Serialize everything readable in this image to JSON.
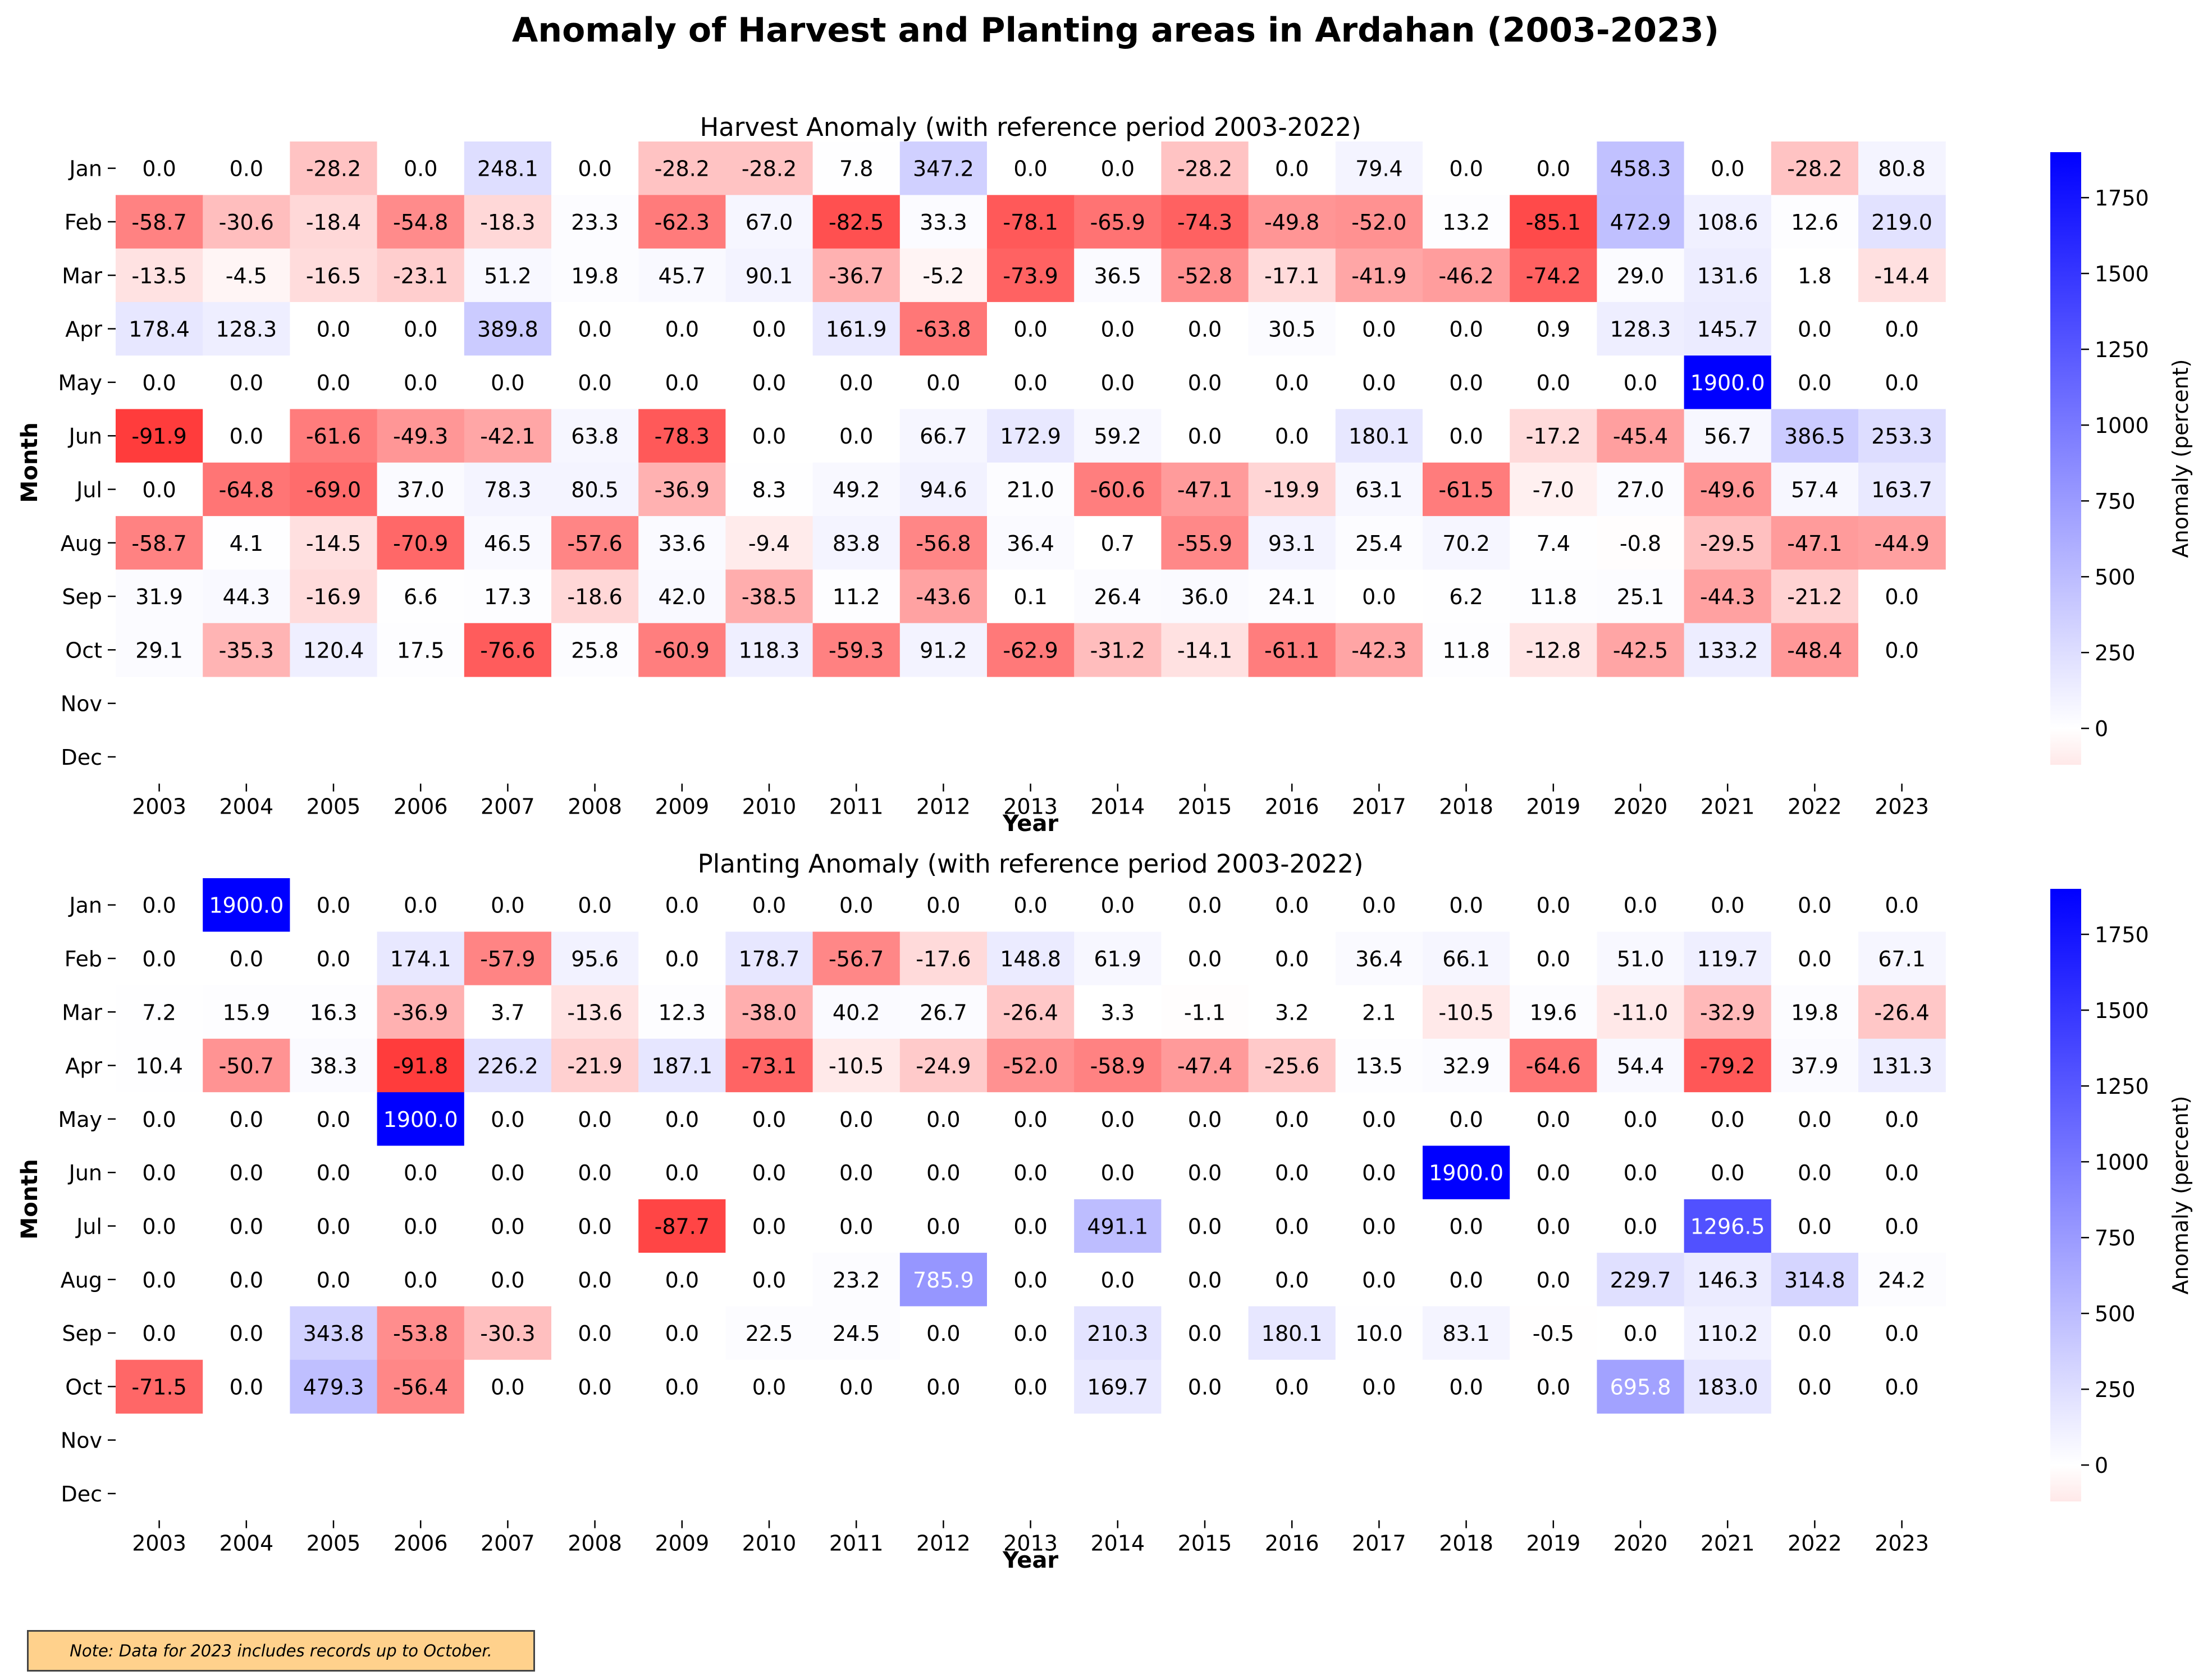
{
  "title": "Anomaly of Harvest and Planting areas in Ardahan (2003-2023)",
  "note": "Note: Data for 2023 includes records up to October.",
  "colors": {
    "negative": "#FF0000",
    "zero": "#FFFFFF",
    "positive": "#0000FF"
  },
  "chart_data": [
    {
      "type": "heatmap",
      "title": "Harvest Anomaly (with reference period 2003-2022)",
      "xlabel": "Year",
      "ylabel": "Month",
      "colorbar_label": "Anomaly (percent)",
      "colorbar_ticks": [
        "0",
        "250",
        "500",
        "750",
        "1000",
        "1250",
        "1500",
        "1750"
      ],
      "colorbar_range": [
        -120,
        1900
      ],
      "years": [
        "2003",
        "2004",
        "2005",
        "2006",
        "2007",
        "2008",
        "2009",
        "2010",
        "2011",
        "2012",
        "2013",
        "2014",
        "2015",
        "2016",
        "2017",
        "2018",
        "2019",
        "2020",
        "2021",
        "2022",
        "2023"
      ],
      "months": [
        "Jan",
        "Feb",
        "Mar",
        "Apr",
        "May",
        "Jun",
        "Jul",
        "Aug",
        "Sep",
        "Oct",
        "Nov",
        "Dec"
      ],
      "values": [
        [
          0.0,
          0.0,
          -28.2,
          0.0,
          248.1,
          0.0,
          -28.2,
          -28.2,
          7.8,
          347.2,
          0.0,
          0.0,
          -28.2,
          0.0,
          79.4,
          0.0,
          0.0,
          458.3,
          0.0,
          -28.2,
          80.8
        ],
        [
          -58.7,
          -30.6,
          -18.4,
          -54.8,
          -18.3,
          23.3,
          -62.3,
          67.0,
          -82.5,
          33.3,
          -78.1,
          -65.9,
          -74.3,
          -49.8,
          -52.0,
          13.2,
          -85.1,
          472.9,
          108.6,
          12.6,
          219.0
        ],
        [
          -13.5,
          -4.5,
          -16.5,
          -23.1,
          51.2,
          19.8,
          45.7,
          90.1,
          -36.7,
          -5.2,
          -73.9,
          36.5,
          -52.8,
          -17.1,
          -41.9,
          -46.2,
          -74.2,
          29.0,
          131.6,
          1.8,
          -14.4
        ],
        [
          178.4,
          128.3,
          0.0,
          0.0,
          389.8,
          0.0,
          0.0,
          0.0,
          161.9,
          -63.8,
          0.0,
          0.0,
          0.0,
          30.5,
          0.0,
          0.0,
          0.9,
          128.3,
          145.7,
          0.0,
          0.0
        ],
        [
          0.0,
          0.0,
          0.0,
          0.0,
          0.0,
          0.0,
          0.0,
          0.0,
          0.0,
          0.0,
          0.0,
          0.0,
          0.0,
          0.0,
          0.0,
          0.0,
          0.0,
          0.0,
          1900.0,
          0.0,
          0.0
        ],
        [
          -91.9,
          0.0,
          -61.6,
          -49.3,
          -42.1,
          63.8,
          -78.3,
          0.0,
          0.0,
          66.7,
          172.9,
          59.2,
          0.0,
          0.0,
          180.1,
          0.0,
          -17.2,
          -45.4,
          56.7,
          386.5,
          253.3
        ],
        [
          0.0,
          -64.8,
          -69.0,
          37.0,
          78.3,
          80.5,
          -36.9,
          8.3,
          49.2,
          94.6,
          21.0,
          -60.6,
          -47.1,
          -19.9,
          63.1,
          -61.5,
          -7.0,
          27.0,
          -49.6,
          57.4,
          163.7
        ],
        [
          -58.7,
          4.1,
          -14.5,
          -70.9,
          46.5,
          -57.6,
          33.6,
          -9.4,
          83.8,
          -56.8,
          36.4,
          0.7,
          -55.9,
          93.1,
          25.4,
          70.2,
          7.4,
          -0.8,
          -29.5,
          -47.1,
          -44.9
        ],
        [
          31.9,
          44.3,
          -16.9,
          6.6,
          17.3,
          -18.6,
          42.0,
          -38.5,
          11.2,
          -43.6,
          0.1,
          26.4,
          36.0,
          24.1,
          0.0,
          6.2,
          11.8,
          25.1,
          -44.3,
          -21.2,
          0.0
        ],
        [
          29.1,
          -35.3,
          120.4,
          17.5,
          -76.6,
          25.8,
          -60.9,
          118.3,
          -59.3,
          91.2,
          -62.9,
          -31.2,
          -14.1,
          -61.1,
          -42.3,
          11.8,
          -12.8,
          -42.5,
          133.2,
          -48.4,
          0.0
        ],
        [
          null,
          null,
          null,
          null,
          null,
          null,
          null,
          null,
          null,
          null,
          null,
          null,
          null,
          null,
          null,
          null,
          null,
          null,
          null,
          null,
          null
        ],
        [
          null,
          null,
          null,
          null,
          null,
          null,
          null,
          null,
          null,
          null,
          null,
          null,
          null,
          null,
          null,
          null,
          null,
          null,
          null,
          null,
          null
        ]
      ]
    },
    {
      "type": "heatmap",
      "title": "Planting Anomaly (with reference period 2003-2022)",
      "xlabel": "Year",
      "ylabel": "Month",
      "colorbar_label": "Anomaly (percent)",
      "colorbar_ticks": [
        "0",
        "250",
        "500",
        "750",
        "1000",
        "1250",
        "1500",
        "1750"
      ],
      "colorbar_range": [
        -120,
        1900
      ],
      "years": [
        "2003",
        "2004",
        "2005",
        "2006",
        "2007",
        "2008",
        "2009",
        "2010",
        "2011",
        "2012",
        "2013",
        "2014",
        "2015",
        "2016",
        "2017",
        "2018",
        "2019",
        "2020",
        "2021",
        "2022",
        "2023"
      ],
      "months": [
        "Jan",
        "Feb",
        "Mar",
        "Apr",
        "May",
        "Jun",
        "Jul",
        "Aug",
        "Sep",
        "Oct",
        "Nov",
        "Dec"
      ],
      "values": [
        [
          0.0,
          1900.0,
          0.0,
          0.0,
          0.0,
          0.0,
          0.0,
          0.0,
          0.0,
          0.0,
          0.0,
          0.0,
          0.0,
          0.0,
          0.0,
          0.0,
          0.0,
          0.0,
          0.0,
          0.0,
          0.0
        ],
        [
          0.0,
          0.0,
          0.0,
          174.1,
          -57.9,
          95.6,
          0.0,
          178.7,
          -56.7,
          -17.6,
          148.8,
          61.9,
          0.0,
          0.0,
          36.4,
          66.1,
          0.0,
          51.0,
          119.7,
          0.0,
          67.1
        ],
        [
          7.2,
          15.9,
          16.3,
          -36.9,
          3.7,
          -13.6,
          12.3,
          -38.0,
          40.2,
          26.7,
          -26.4,
          3.3,
          -1.1,
          3.2,
          2.1,
          -10.5,
          19.6,
          -11.0,
          -32.9,
          19.8,
          -26.4
        ],
        [
          10.4,
          -50.7,
          38.3,
          -91.8,
          226.2,
          -21.9,
          187.1,
          -73.1,
          -10.5,
          -24.9,
          -52.0,
          -58.9,
          -47.4,
          -25.6,
          13.5,
          32.9,
          -64.6,
          54.4,
          -79.2,
          37.9,
          131.3
        ],
        [
          0.0,
          0.0,
          0.0,
          1900.0,
          0.0,
          0.0,
          0.0,
          0.0,
          0.0,
          0.0,
          0.0,
          0.0,
          0.0,
          0.0,
          0.0,
          0.0,
          0.0,
          0.0,
          0.0,
          0.0,
          0.0
        ],
        [
          0.0,
          0.0,
          0.0,
          0.0,
          0.0,
          0.0,
          0.0,
          0.0,
          0.0,
          0.0,
          0.0,
          0.0,
          0.0,
          0.0,
          0.0,
          1900.0,
          0.0,
          0.0,
          0.0,
          0.0,
          0.0
        ],
        [
          0.0,
          0.0,
          0.0,
          0.0,
          0.0,
          0.0,
          -87.7,
          0.0,
          0.0,
          0.0,
          0.0,
          491.1,
          0.0,
          0.0,
          0.0,
          0.0,
          0.0,
          0.0,
          1296.5,
          0.0,
          0.0
        ],
        [
          0.0,
          0.0,
          0.0,
          0.0,
          0.0,
          0.0,
          0.0,
          0.0,
          23.2,
          785.9,
          0.0,
          0.0,
          0.0,
          0.0,
          0.0,
          0.0,
          0.0,
          229.7,
          146.3,
          314.8,
          24.2
        ],
        [
          0.0,
          0.0,
          343.8,
          -53.8,
          -30.3,
          0.0,
          0.0,
          22.5,
          24.5,
          0.0,
          0.0,
          210.3,
          0.0,
          180.1,
          10.0,
          83.1,
          -0.5,
          0.0,
          110.2,
          0.0,
          0.0
        ],
        [
          -71.5,
          0.0,
          479.3,
          -56.4,
          0.0,
          0.0,
          0.0,
          0.0,
          0.0,
          0.0,
          0.0,
          169.7,
          0.0,
          0.0,
          0.0,
          0.0,
          0.0,
          695.8,
          183.0,
          0.0,
          0.0
        ],
        [
          null,
          null,
          null,
          null,
          null,
          null,
          null,
          null,
          null,
          null,
          null,
          null,
          null,
          null,
          null,
          null,
          null,
          null,
          null,
          null,
          null
        ],
        [
          null,
          null,
          null,
          null,
          null,
          null,
          null,
          null,
          null,
          null,
          null,
          null,
          null,
          null,
          null,
          null,
          null,
          null,
          null,
          null,
          null
        ]
      ]
    }
  ]
}
